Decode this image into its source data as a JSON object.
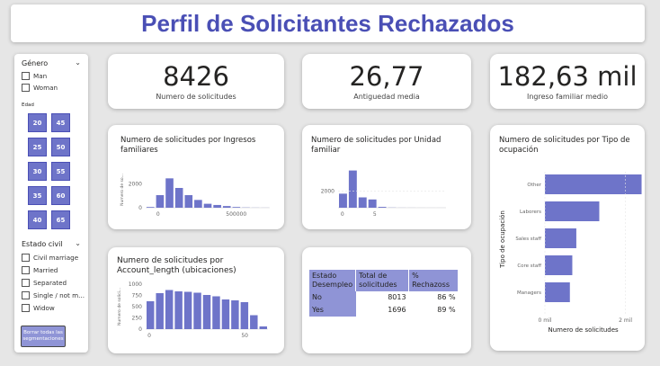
{
  "title": "Perfil de Solicitantes Rechazados",
  "kpis": {
    "solicitudes": {
      "value": "8426",
      "label": "Numero de solicitudes"
    },
    "antiguedad": {
      "value": "26,77",
      "label": "Antiguedad media"
    },
    "ingreso": {
      "value": "182,63 mil",
      "label": "Ingreso familiar medio"
    }
  },
  "slicers": {
    "genero": {
      "title": "Género",
      "options": [
        "Man",
        "Woman"
      ]
    },
    "edad": {
      "title": "Edad",
      "tiles": [
        "20",
        "45",
        "25",
        "50",
        "30",
        "55",
        "35",
        "60",
        "40",
        "65"
      ]
    },
    "estado_civil": {
      "title": "Estado civil",
      "options": [
        "Civil marriage",
        "Married",
        "Separated",
        "Single / not m...",
        "Widow"
      ]
    },
    "clear_button": "Borrar todas las segmentaciones"
  },
  "table": {
    "headers": [
      "Estado Desempleo",
      "Total de solicitudes",
      "% Rechazoss"
    ],
    "rows": [
      {
        "estado": "No",
        "total": "8013",
        "pct": "86 %"
      },
      {
        "estado": "Yes",
        "total": "1696",
        "pct": "89 %"
      }
    ]
  },
  "chart_data": [
    {
      "type": "bar",
      "title": "Numero de solicitudes por Ingresos familiares",
      "ylabel": "Numero de so...",
      "xlabel": "",
      "x_tick_labels": [
        "0",
        "500000"
      ],
      "y_tick_labels": [
        "0",
        "2000"
      ],
      "ylim": [
        0,
        3000
      ],
      "categories": [
        "50000",
        "100000",
        "150000",
        "200000",
        "250000",
        "300000",
        "350000",
        "400000",
        "450000",
        "500000",
        "550000",
        "600000",
        "650000"
      ],
      "values": [
        60,
        1050,
        2450,
        1650,
        1050,
        650,
        330,
        230,
        140,
        60,
        20,
        8,
        5
      ]
    },
    {
      "type": "bar",
      "title": "Numero de solicitudes por Unidad familiar",
      "ylabel": "",
      "xlabel": "",
      "x_tick_labels": [
        "0",
        "5"
      ],
      "y_tick_labels": [
        "2000"
      ],
      "ylim": [
        0,
        5000
      ],
      "categories": [
        "1",
        "2",
        "3",
        "4",
        "5",
        "6",
        "7",
        "8",
        "9",
        "10",
        "11"
      ],
      "values": [
        1700,
        4500,
        1250,
        1000,
        100,
        20,
        8,
        5,
        3,
        2,
        2
      ]
    },
    {
      "type": "bar",
      "title": "Numero de solicitudes por Account_length (ubicaciones)",
      "ylabel": "Numero de solici...",
      "xlabel": "",
      "x_tick_labels": [
        "0",
        "50"
      ],
      "y_tick_labels": [
        "0",
        "250",
        "500",
        "750",
        "1000"
      ],
      "ylim": [
        0,
        1000
      ],
      "categories": [
        "0",
        "5",
        "10",
        "15",
        "20",
        "25",
        "30",
        "35",
        "40",
        "45",
        "50",
        "55",
        "60"
      ],
      "values": [
        620,
        800,
        870,
        840,
        830,
        810,
        760,
        730,
        660,
        640,
        600,
        310,
        60
      ]
    },
    {
      "type": "bar",
      "orientation": "horizontal",
      "title": "Numero de solicitudes por Tipo de ocupación",
      "ylabel": "Tipo de ocupación",
      "xlabel": "Numero de solicitudes",
      "x_tick_labels": [
        "0 mil",
        "2 mil"
      ],
      "xlim": [
        0,
        2500
      ],
      "categories": [
        "Other",
        "Laborers",
        "Sales staff",
        "Core staff",
        "Managers"
      ],
      "values": [
        2400,
        1350,
        780,
        680,
        620
      ]
    }
  ],
  "colors": {
    "bar": "#6e74c9",
    "title": "#4a4fb5",
    "header": "#8f94d6"
  }
}
